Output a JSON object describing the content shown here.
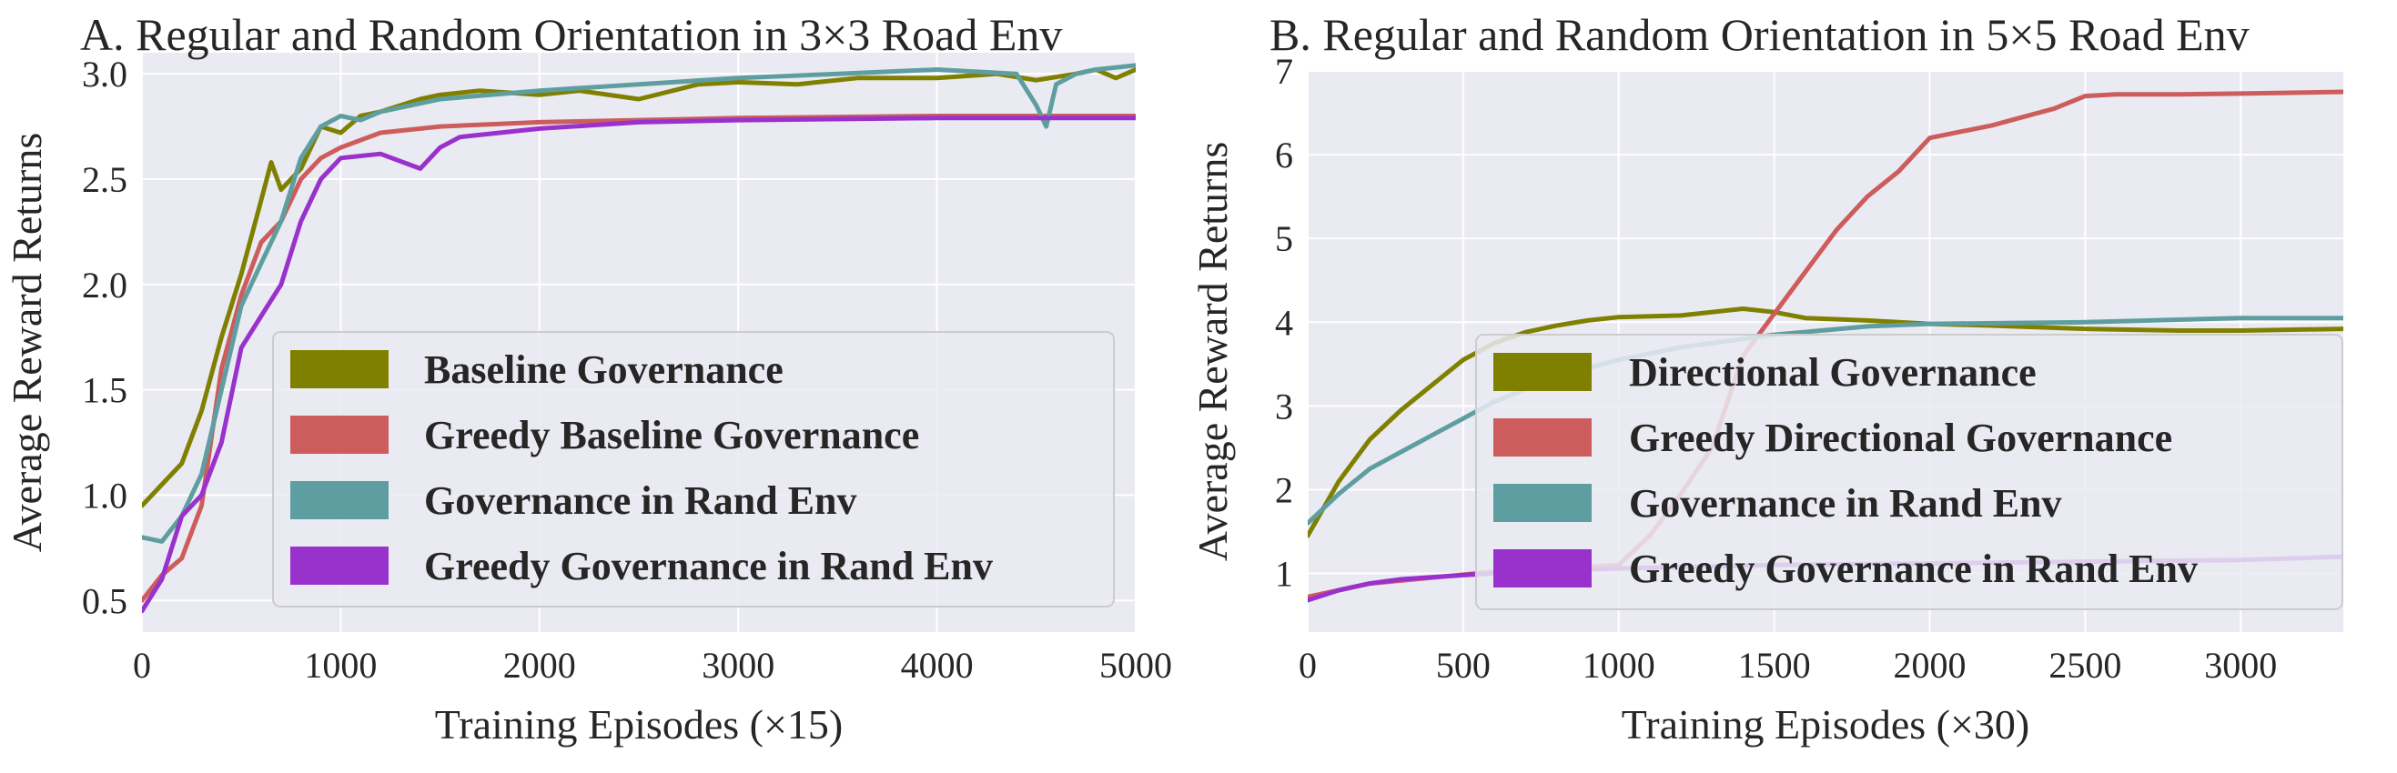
{
  "chart_data": [
    {
      "type": "line",
      "title": "A. Regular and Random Orientation in 3×3 Road Env",
      "xlabel": "Training Episodes (×15)",
      "ylabel": "Average Reward Returns",
      "xlim": [
        0,
        5000
      ],
      "ylim": [
        0.35,
        3.1
      ],
      "xticks": [
        "0",
        "1000",
        "2000",
        "3000",
        "4000",
        "5000"
      ],
      "yticks": [
        "0.5",
        "1.0",
        "1.5",
        "2.0",
        "2.5",
        "3.0"
      ],
      "grid": true,
      "legend_position": "lower-right",
      "series": [
        {
          "name": "Baseline Governance",
          "color": "#808000",
          "x": [
            0,
            100,
            200,
            300,
            400,
            500,
            600,
            650,
            700,
            800,
            900,
            1000,
            1100,
            1200,
            1300,
            1400,
            1500,
            1700,
            2000,
            2200,
            2500,
            2800,
            3000,
            3300,
            3600,
            4000,
            4300,
            4500,
            4700,
            4800,
            4900,
            5000
          ],
          "y": [
            0.95,
            1.05,
            1.15,
            1.4,
            1.75,
            2.05,
            2.4,
            2.58,
            2.45,
            2.55,
            2.75,
            2.72,
            2.8,
            2.82,
            2.85,
            2.88,
            2.9,
            2.92,
            2.9,
            2.92,
            2.88,
            2.95,
            2.96,
            2.95,
            2.98,
            2.98,
            3.0,
            2.97,
            3.0,
            3.02,
            2.98,
            3.02
          ]
        },
        {
          "name": "Greedy Baseline Governance",
          "color": "#cd5c5c",
          "x": [
            0,
            100,
            200,
            300,
            400,
            500,
            600,
            700,
            800,
            900,
            1000,
            1200,
            1500,
            2000,
            2500,
            3000,
            4000,
            5000
          ],
          "y": [
            0.5,
            0.62,
            0.7,
            0.95,
            1.6,
            1.95,
            2.2,
            2.3,
            2.5,
            2.6,
            2.65,
            2.72,
            2.75,
            2.77,
            2.78,
            2.79,
            2.8,
            2.8
          ]
        },
        {
          "name": "Governance in Rand Env",
          "color": "#5f9ea0",
          "x": [
            0,
            100,
            200,
            300,
            400,
            500,
            600,
            700,
            800,
            900,
            1000,
            1100,
            1200,
            1500,
            2000,
            2500,
            3000,
            3500,
            4000,
            4400,
            4500,
            4550,
            4600,
            4700,
            4800,
            5000
          ],
          "y": [
            0.8,
            0.78,
            0.9,
            1.1,
            1.5,
            1.9,
            2.1,
            2.3,
            2.6,
            2.75,
            2.8,
            2.78,
            2.82,
            2.88,
            2.92,
            2.95,
            2.98,
            3.0,
            3.02,
            3.0,
            2.85,
            2.75,
            2.95,
            3.0,
            3.02,
            3.04
          ]
        },
        {
          "name": "Greedy Governance in Rand Env",
          "color": "#9932cc",
          "x": [
            0,
            100,
            200,
            300,
            400,
            500,
            600,
            700,
            800,
            900,
            1000,
            1200,
            1400,
            1500,
            1600,
            1800,
            2000,
            2500,
            3000,
            4000,
            5000
          ],
          "y": [
            0.45,
            0.6,
            0.9,
            1.0,
            1.25,
            1.7,
            1.85,
            2.0,
            2.3,
            2.5,
            2.6,
            2.62,
            2.55,
            2.65,
            2.7,
            2.72,
            2.74,
            2.77,
            2.78,
            2.79,
            2.79
          ]
        }
      ]
    },
    {
      "type": "line",
      "title": "B. Regular and Random Orientation in 5×5 Road Env",
      "xlabel": "Training Episodes (×30)",
      "ylabel": "Average Reward Returns",
      "xlim": [
        0,
        3330
      ],
      "ylim": [
        0.3,
        7.0
      ],
      "xticks": [
        "0",
        "500",
        "1000",
        "1500",
        "2000",
        "2500",
        "3000"
      ],
      "yticks": [
        "1",
        "2",
        "3",
        "4",
        "5",
        "6",
        "7"
      ],
      "grid": true,
      "legend_position": "lower-right",
      "series": [
        {
          "name": "Directional Governance",
          "color": "#808000",
          "x": [
            0,
            100,
            200,
            300,
            400,
            500,
            600,
            700,
            800,
            900,
            1000,
            1200,
            1400,
            1500,
            1600,
            1800,
            2000,
            2200,
            2500,
            2800,
            3000,
            3330
          ],
          "y": [
            1.45,
            2.1,
            2.6,
            2.95,
            3.25,
            3.55,
            3.75,
            3.88,
            3.96,
            4.02,
            4.06,
            4.08,
            4.16,
            4.12,
            4.05,
            4.02,
            3.98,
            3.96,
            3.92,
            3.9,
            3.9,
            3.92
          ]
        },
        {
          "name": "Greedy Directional Governance",
          "color": "#cd5c5c",
          "x": [
            0,
            200,
            400,
            600,
            800,
            1000,
            1100,
            1200,
            1300,
            1400,
            1500,
            1600,
            1700,
            1800,
            1900,
            2000,
            2200,
            2400,
            2500,
            2600,
            2800,
            3000,
            3330
          ],
          "y": [
            0.72,
            0.88,
            0.95,
            1.02,
            1.05,
            1.1,
            1.45,
            1.95,
            2.5,
            3.6,
            4.1,
            4.6,
            5.1,
            5.5,
            5.8,
            6.2,
            6.35,
            6.55,
            6.7,
            6.72,
            6.72,
            6.73,
            6.75
          ]
        },
        {
          "name": "Governance in Rand Env",
          "color": "#5f9ea0",
          "x": [
            0,
            100,
            200,
            300,
            400,
            500,
            600,
            700,
            800,
            1000,
            1200,
            1500,
            1800,
            2000,
            2500,
            3000,
            3330
          ],
          "y": [
            1.6,
            1.95,
            2.25,
            2.45,
            2.65,
            2.85,
            3.05,
            3.2,
            3.35,
            3.55,
            3.7,
            3.85,
            3.95,
            3.98,
            4.0,
            4.05,
            4.05
          ]
        },
        {
          "name": "Greedy Governance in Rand Env",
          "color": "#9932cc",
          "x": [
            0,
            100,
            200,
            300,
            500,
            700,
            1000,
            1500,
            2000,
            2500,
            3000,
            3330
          ],
          "y": [
            0.68,
            0.8,
            0.88,
            0.93,
            0.98,
            1.02,
            1.06,
            1.1,
            1.12,
            1.14,
            1.16,
            1.2
          ]
        }
      ]
    }
  ]
}
